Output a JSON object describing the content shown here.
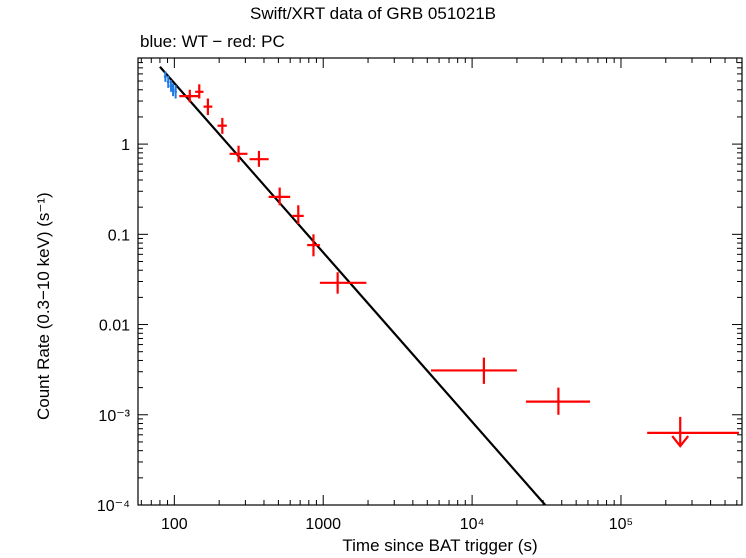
{
  "chart_data": {
    "type": "scatter",
    "title": "Swift/XRT data of GRB 051021B",
    "subtitle": "blue: WT − red: PC",
    "xlabel": "Time since BAT trigger (s)",
    "ylabel": "Count Rate (0.3−10 keV) (s⁻¹)",
    "xscale": "log",
    "yscale": "log",
    "xlim": [
      57,
      650000
    ],
    "ylim": [
      0.0001,
      9
    ],
    "x_ticks": [
      {
        "value": 100,
        "label": "100"
      },
      {
        "value": 1000,
        "label": "1000"
      },
      {
        "value": 10000,
        "label": "10⁴"
      },
      {
        "value": 100000,
        "label": "10⁵"
      }
    ],
    "y_ticks": [
      {
        "value": 0.0001,
        "label": "10⁻⁴"
      },
      {
        "value": 0.001,
        "label": "10⁻³"
      },
      {
        "value": 0.01,
        "label": "0.01"
      },
      {
        "value": 0.1,
        "label": "0.1"
      },
      {
        "value": 1,
        "label": "1"
      }
    ],
    "series": [
      {
        "name": "WT",
        "color": "#1e78e6",
        "points": [
          {
            "x": 87,
            "xerr": [
              85,
              89
            ],
            "y": 5.6,
            "yerr": [
              4.9,
              6.4
            ]
          },
          {
            "x": 91,
            "xerr": [
              89,
              93
            ],
            "y": 4.9,
            "yerr": [
              4.2,
              5.7
            ]
          },
          {
            "x": 95,
            "xerr": [
              93,
              97
            ],
            "y": 4.4,
            "yerr": [
              3.8,
              5.1
            ]
          },
          {
            "x": 98,
            "xerr": [
              97,
              100
            ],
            "y": 4.0,
            "yerr": [
              3.4,
              4.7
            ]
          },
          {
            "x": 102,
            "xerr": [
              100,
              104
            ],
            "y": 3.8,
            "yerr": [
              3.2,
              4.5
            ]
          }
        ]
      },
      {
        "name": "PC",
        "color": "#ff0000",
        "points": [
          {
            "x": 127,
            "xerr": [
              108,
              148
            ],
            "y": 3.4,
            "yerr": [
              2.9,
              4.0
            ]
          },
          {
            "x": 147,
            "xerr": [
              138,
              157
            ],
            "y": 3.8,
            "yerr": [
              3.2,
              4.6
            ]
          },
          {
            "x": 168,
            "xerr": [
              157,
              180
            ],
            "y": 2.6,
            "yerr": [
              2.1,
              3.2
            ]
          },
          {
            "x": 210,
            "xerr": [
              195,
              225
            ],
            "y": 1.6,
            "yerr": [
              1.3,
              1.95
            ]
          },
          {
            "x": 270,
            "xerr": [
              235,
              310
            ],
            "y": 0.78,
            "yerr": [
              0.63,
              0.96
            ]
          },
          {
            "x": 370,
            "xerr": [
              320,
              430
            ],
            "y": 0.68,
            "yerr": [
              0.56,
              0.84
            ]
          },
          {
            "x": 510,
            "xerr": [
              430,
              600
            ],
            "y": 0.26,
            "yerr": [
              0.21,
              0.33
            ]
          },
          {
            "x": 680,
            "xerr": [
              620,
              740
            ],
            "y": 0.16,
            "yerr": [
              0.13,
              0.21
            ]
          },
          {
            "x": 860,
            "xerr": [
              780,
              950
            ],
            "y": 0.076,
            "yerr": [
              0.057,
              0.1
            ]
          },
          {
            "x": 1250,
            "xerr": [
              950,
              1950
            ],
            "y": 0.029,
            "yerr": [
              0.022,
              0.038
            ]
          },
          {
            "x": 12000,
            "xerr": [
              5300,
              20000
            ],
            "y": 0.0031,
            "yerr": [
              0.0022,
              0.0043
            ]
          },
          {
            "x": 38000,
            "xerr": [
              23000,
              62000
            ],
            "y": 0.0014,
            "yerr": [
              0.001,
              0.002
            ]
          },
          {
            "x": 250000,
            "xerr": [
              150000,
              620000
            ],
            "y": 0.00063,
            "upper_limit": true,
            "arrow_to": 0.00045
          }
        ]
      }
    ],
    "model": {
      "type": "power-law",
      "color": "#000000",
      "points": [
        {
          "x": 80,
          "y": 7.2
        },
        {
          "x": 31000,
          "y": 0.0001
        }
      ]
    }
  }
}
